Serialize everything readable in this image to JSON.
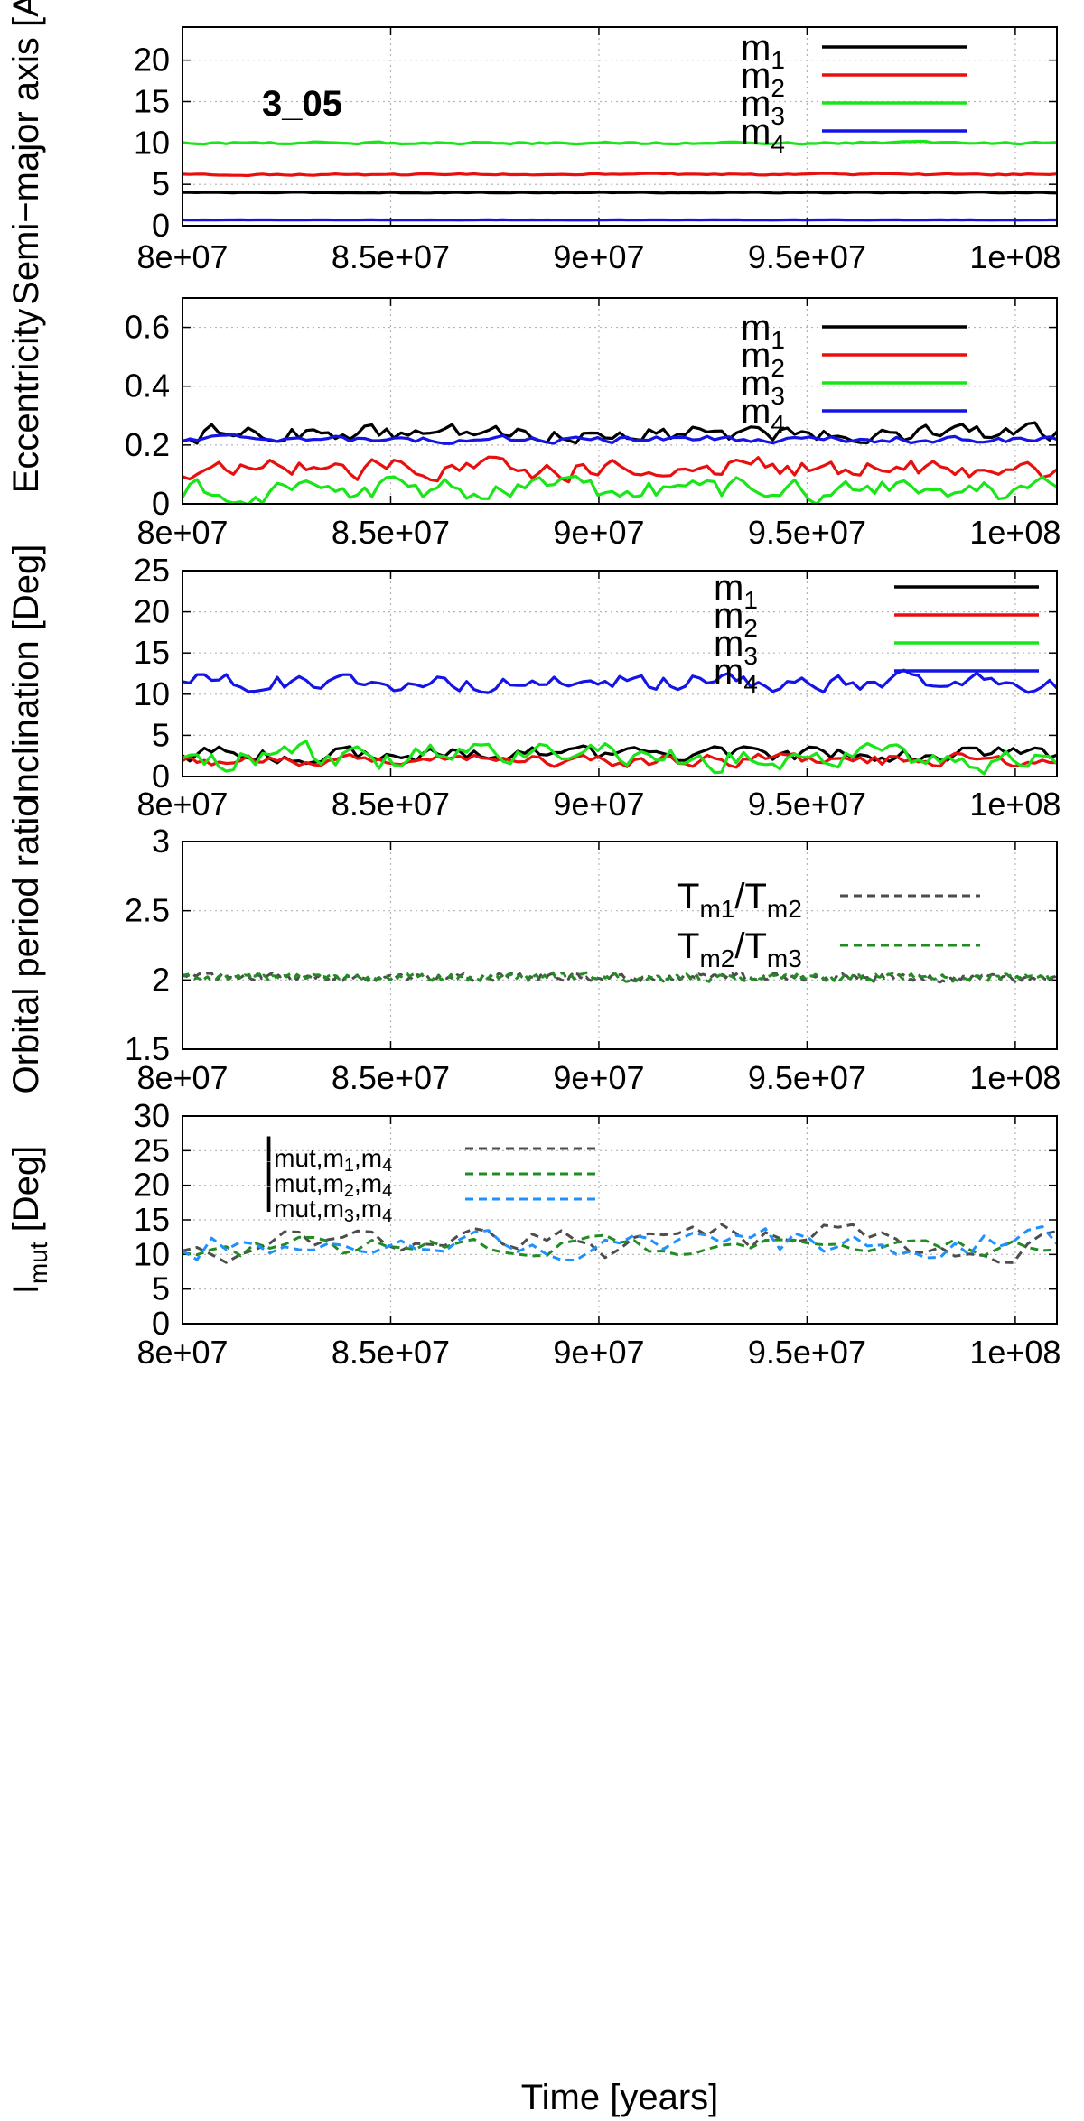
{
  "chart_data": [
    {
      "type": "line",
      "panel_label": "3_05",
      "ylabel": "Semi−major axis [AU]",
      "xlabel": "",
      "xlim": [
        80000000,
        101000000
      ],
      "ylim": [
        0,
        24
      ],
      "xticks": [
        80000000,
        85000000,
        90000000,
        95000000,
        100000000
      ],
      "xtick_labels": [
        "8e+07",
        "8.5e+07",
        "9e+07",
        "9.5e+07",
        "1e+08"
      ],
      "yticks": [
        0,
        5,
        10,
        15,
        20
      ],
      "ytick_labels": [
        "0",
        "5",
        "10",
        "15",
        "20"
      ],
      "grid": true,
      "legend_position": "top-right",
      "series": [
        {
          "name": "m",
          "subscript": "1",
          "color": "#000000",
          "style": "solid",
          "base": 4.0,
          "amp": 0.05
        },
        {
          "name": "m",
          "subscript": "2",
          "color": "#e8100f",
          "style": "solid",
          "base": 6.2,
          "amp": 0.1
        },
        {
          "name": "m",
          "subscript": "3",
          "color": "#19e519",
          "style": "solid",
          "base": 10.0,
          "amp": 0.15
        },
        {
          "name": "m",
          "subscript": "4",
          "color": "#1414e6",
          "style": "solid",
          "base": 0.7,
          "amp": 0.02
        }
      ]
    },
    {
      "type": "line",
      "ylabel": "Eccentricity",
      "xlabel": "",
      "xlim": [
        80000000,
        101000000
      ],
      "ylim": [
        0,
        0.7
      ],
      "xticks": [
        80000000,
        85000000,
        90000000,
        95000000,
        100000000
      ],
      "xtick_labels": [
        "8e+07",
        "8.5e+07",
        "9e+07",
        "9.5e+07",
        "1e+08"
      ],
      "yticks": [
        0,
        0.2,
        0.4,
        0.6
      ],
      "ytick_labels": [
        "0",
        "0.2",
        "0.4",
        "0.6"
      ],
      "grid": true,
      "legend_position": "top-right",
      "series": [
        {
          "name": "m",
          "subscript": "1",
          "color": "#000000",
          "style": "solid",
          "base": 0.24,
          "amp": 0.03
        },
        {
          "name": "m",
          "subscript": "2",
          "color": "#e8100f",
          "style": "solid",
          "base": 0.12,
          "amp": 0.035
        },
        {
          "name": "m",
          "subscript": "3",
          "color": "#19e519",
          "style": "solid",
          "base": 0.05,
          "amp": 0.04
        },
        {
          "name": "m",
          "subscript": "4",
          "color": "#1414e6",
          "style": "solid",
          "base": 0.22,
          "amp": 0.012
        }
      ]
    },
    {
      "type": "line",
      "ylabel": "Inclination [Deg]",
      "xlabel": "",
      "xlim": [
        80000000,
        101000000
      ],
      "ylim": [
        0,
        25
      ],
      "xticks": [
        80000000,
        85000000,
        90000000,
        95000000,
        100000000
      ],
      "xtick_labels": [
        "8e+07",
        "8.5e+07",
        "9e+07",
        "9.5e+07",
        "1e+08"
      ],
      "yticks": [
        0,
        5,
        10,
        15,
        20,
        25
      ],
      "ytick_labels": [
        "0",
        "5",
        "10",
        "15",
        "20",
        "25"
      ],
      "grid": true,
      "legend_position": "top-right",
      "series": [
        {
          "name": "m",
          "subscript": "1",
          "color": "#000000",
          "style": "solid",
          "base": 2.7,
          "amp": 0.9
        },
        {
          "name": "m",
          "subscript": "2",
          "color": "#e8100f",
          "style": "solid",
          "base": 2.0,
          "amp": 0.8
        },
        {
          "name": "m",
          "subscript": "3",
          "color": "#19e519",
          "style": "solid",
          "base": 2.3,
          "amp": 1.6
        },
        {
          "name": "m",
          "subscript": "4",
          "color": "#1414e6",
          "style": "solid",
          "base": 11.5,
          "amp": 1.1
        }
      ]
    },
    {
      "type": "line",
      "ylabel": "Orbital period ratio",
      "xlabel": "",
      "xlim": [
        80000000,
        101000000
      ],
      "ylim": [
        1.5,
        3
      ],
      "xticks": [
        80000000,
        85000000,
        90000000,
        95000000,
        100000000
      ],
      "xtick_labels": [
        "8e+07",
        "8.5e+07",
        "9e+07",
        "9.5e+07",
        "1e+08"
      ],
      "yticks": [
        1.5,
        2,
        2.5,
        3
      ],
      "ytick_labels": [
        "1.5",
        "2",
        "2.5",
        "3"
      ],
      "grid": true,
      "legend_position": "right",
      "series": [
        {
          "name": "T",
          "subscript": "m1",
          "name2": "/T",
          "subscript2": "m2",
          "color": "#4d4d4d",
          "style": "dashed",
          "base": 2.02,
          "amp": 0.025
        },
        {
          "name": "T",
          "subscript": "m2",
          "name2": "/T",
          "subscript2": "m3",
          "color": "#238b23",
          "style": "dashed",
          "base": 2.02,
          "amp": 0.025
        }
      ]
    },
    {
      "type": "line",
      "ylabel": "I",
      "ylabel_subscript": "mut",
      "ylabel_suffix": " [Deg]",
      "xlabel": "Time [years]",
      "xlim": [
        80000000,
        101000000
      ],
      "ylim": [
        0,
        30
      ],
      "xticks": [
        80000000,
        85000000,
        90000000,
        95000000,
        100000000
      ],
      "xtick_labels": [
        "8e+07",
        "8.5e+07",
        "9e+07",
        "9.5e+07",
        "1e+08"
      ],
      "yticks": [
        0,
        5,
        10,
        15,
        20,
        25,
        30
      ],
      "ytick_labels": [
        "0",
        "5",
        "10",
        "15",
        "20",
        "25",
        "30"
      ],
      "grid": true,
      "legend_position": "top-center",
      "series": [
        {
          "name": "I",
          "subscript": "mut,m",
          "sub2": "1",
          "sub3": ",m",
          "sub4": "4",
          "color": "#4d4d4d",
          "style": "dashed",
          "base": 12.0,
          "amp": 2.6
        },
        {
          "name": "I",
          "subscript": "mut,m",
          "sub2": "2",
          "sub3": ",m",
          "sub4": "4",
          "color": "#238b23",
          "style": "dashed",
          "base": 11.0,
          "amp": 1.5
        },
        {
          "name": "I",
          "subscript": "mut,m",
          "sub2": "3",
          "sub3": ",m",
          "sub4": "4",
          "color": "#1e90ff",
          "style": "dashed",
          "base": 11.5,
          "amp": 2.2
        }
      ]
    }
  ]
}
